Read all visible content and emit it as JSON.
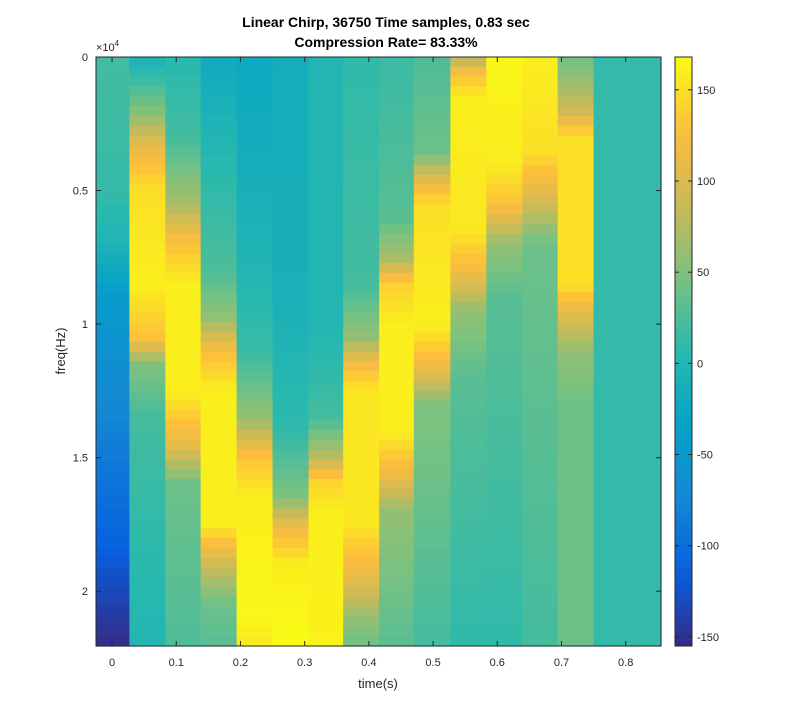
{
  "chart_data": {
    "type": "heatmap",
    "title_lines": [
      "Linear Chirp, 36750 Time samples, 0.83 sec",
      "Compression Rate= 83.33%"
    ],
    "xlabel": "time(s)",
    "ylabel": "freq(Hz)",
    "y_exponent_label": "×10",
    "y_exponent_power": "4",
    "x_ticks": [
      0,
      0.1,
      0.2,
      0.3,
      0.4,
      0.5,
      0.6,
      0.7,
      0.8
    ],
    "x_tick_labels": [
      "0",
      "0.1",
      "0.2",
      "0.3",
      "0.4",
      "0.5",
      "0.6",
      "0.7",
      "0.8"
    ],
    "y_ticks": [
      0,
      5000,
      10000,
      15000,
      20000
    ],
    "y_tick_labels": [
      "0",
      "0.5",
      "1",
      "1.5",
      "2"
    ],
    "xlim": [
      -0.025,
      0.855
    ],
    "ylim": [
      0,
      22050
    ],
    "y_reversed": true,
    "colorbar": {
      "colormap": "parula",
      "clim": [
        -155,
        168
      ],
      "ticks": [
        -150,
        -100,
        -50,
        0,
        50,
        100,
        150
      ],
      "tick_labels": [
        "-150",
        "-100",
        "-50",
        "0",
        "50",
        "100",
        "150"
      ]
    },
    "columns": [
      {
        "t0": -0.025,
        "t1": 0.027,
        "profile": [
          [
            0,
            20
          ],
          [
            5200,
            12
          ],
          [
            7000,
            -5
          ],
          [
            9000,
            -45
          ],
          [
            14000,
            -80
          ],
          [
            18000,
            -110
          ],
          [
            22050,
            -155
          ]
        ]
      },
      {
        "t0": 0.027,
        "t1": 0.083,
        "profile": [
          [
            0,
            -10
          ],
          [
            2000,
            50
          ],
          [
            3500,
            115
          ],
          [
            5000,
            150
          ],
          [
            8500,
            160
          ],
          [
            10500,
            130
          ],
          [
            11500,
            50
          ],
          [
            13500,
            20
          ],
          [
            22050,
            0
          ]
        ]
      },
      {
        "t0": 0.083,
        "t1": 0.138,
        "profile": [
          [
            0,
            5
          ],
          [
            3000,
            20
          ],
          [
            5500,
            70
          ],
          [
            7000,
            130
          ],
          [
            8500,
            160
          ],
          [
            12500,
            160
          ],
          [
            14500,
            110
          ],
          [
            16000,
            40
          ],
          [
            22050,
            25
          ]
        ]
      },
      {
        "t0": 0.138,
        "t1": 0.194,
        "profile": [
          [
            0,
            -20
          ],
          [
            4000,
            5
          ],
          [
            8000,
            25
          ],
          [
            9800,
            60
          ],
          [
            11000,
            125
          ],
          [
            12500,
            160
          ],
          [
            17500,
            160
          ],
          [
            19000,
            90
          ],
          [
            20500,
            40
          ],
          [
            22050,
            30
          ]
        ]
      },
      {
        "t0": 0.194,
        "t1": 0.25,
        "profile": [
          [
            0,
            -25
          ],
          [
            7000,
            -5
          ],
          [
            11000,
            15
          ],
          [
            13500,
            60
          ],
          [
            15000,
            130
          ],
          [
            16500,
            160
          ],
          [
            21000,
            165
          ],
          [
            22050,
            155
          ]
        ]
      },
      {
        "t0": 0.25,
        "t1": 0.306,
        "profile": [
          [
            0,
            -15
          ],
          [
            9000,
            -10
          ],
          [
            14000,
            10
          ],
          [
            16500,
            50
          ],
          [
            17500,
            110
          ],
          [
            19000,
            160
          ],
          [
            22050,
            168
          ]
        ]
      },
      {
        "t0": 0.306,
        "t1": 0.36,
        "profile": [
          [
            0,
            0
          ],
          [
            10000,
            0
          ],
          [
            13500,
            20
          ],
          [
            15000,
            80
          ],
          [
            15800,
            140
          ],
          [
            17000,
            160
          ],
          [
            22050,
            162
          ]
        ]
      },
      {
        "t0": 0.36,
        "t1": 0.416,
        "profile": [
          [
            0,
            10
          ],
          [
            8500,
            20
          ],
          [
            10500,
            60
          ],
          [
            11500,
            120
          ],
          [
            12500,
            155
          ],
          [
            17500,
            155
          ],
          [
            19500,
            110
          ],
          [
            21000,
            60
          ],
          [
            22050,
            40
          ]
        ]
      },
      {
        "t0": 0.416,
        "t1": 0.47,
        "profile": [
          [
            0,
            15
          ],
          [
            6000,
            30
          ],
          [
            7500,
            70
          ],
          [
            8500,
            140
          ],
          [
            10000,
            160
          ],
          [
            14000,
            160
          ],
          [
            15500,
            120
          ],
          [
            17000,
            60
          ],
          [
            22050,
            30
          ]
        ]
      },
      {
        "t0": 0.47,
        "t1": 0.527,
        "profile": [
          [
            0,
            25
          ],
          [
            3500,
            40
          ],
          [
            4500,
            100
          ],
          [
            5500,
            150
          ],
          [
            10000,
            160
          ],
          [
            11500,
            120
          ],
          [
            13000,
            50
          ],
          [
            22050,
            20
          ]
        ]
      },
      {
        "t0": 0.527,
        "t1": 0.583,
        "profile": [
          [
            0,
            70
          ],
          [
            600,
            125
          ],
          [
            1500,
            160
          ],
          [
            6500,
            155
          ],
          [
            8000,
            120
          ],
          [
            9500,
            60
          ],
          [
            12000,
            30
          ],
          [
            22050,
            10
          ]
        ]
      },
      {
        "t0": 0.583,
        "t1": 0.639,
        "profile": [
          [
            0,
            165
          ],
          [
            4000,
            158
          ],
          [
            5500,
            130
          ],
          [
            7000,
            60
          ],
          [
            9000,
            30
          ],
          [
            22050,
            10
          ]
        ]
      },
      {
        "t0": 0.639,
        "t1": 0.694,
        "profile": [
          [
            0,
            160
          ],
          [
            3500,
            150
          ],
          [
            5000,
            110
          ],
          [
            7000,
            40
          ],
          [
            22050,
            20
          ]
        ]
      },
      {
        "t0": 0.694,
        "t1": 0.75,
        "profile": [
          [
            0,
            40
          ],
          [
            2000,
            90
          ],
          [
            3000,
            150
          ],
          [
            8500,
            150
          ],
          [
            9500,
            110
          ],
          [
            11000,
            60
          ],
          [
            13000,
            40
          ],
          [
            22050,
            40
          ]
        ]
      },
      {
        "t0": 0.75,
        "t1": 0.855,
        "profile": [
          [
            0,
            12
          ],
          [
            22050,
            12
          ]
        ]
      }
    ]
  }
}
